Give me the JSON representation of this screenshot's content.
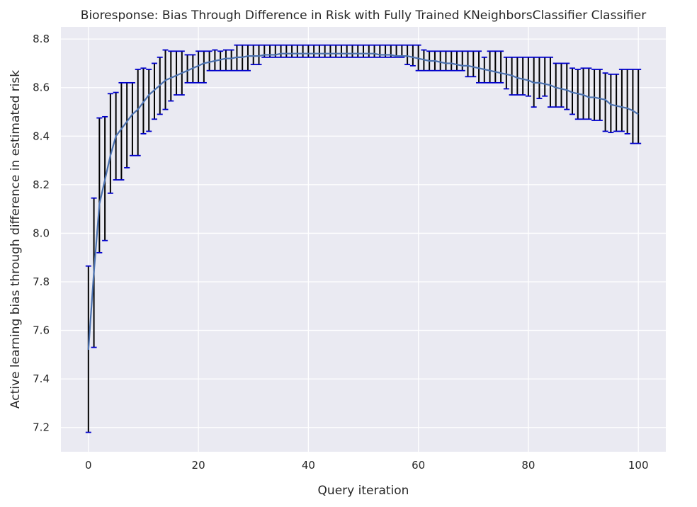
{
  "chart_data": {
    "type": "line",
    "title": "Bioresponse: Bias Through Difference in Risk with Fully Trained KNeighborsClassifier Classifier",
    "xlabel": "Query iteration",
    "ylabel": "Active learning bias through difference in estimated risk",
    "xlim": [
      -5,
      105
    ],
    "ylim": [
      7.1,
      8.85
    ],
    "grid": true,
    "x_ticks": [
      0,
      20,
      40,
      60,
      80,
      100
    ],
    "x_tick_labels": [
      "0",
      "20",
      "40",
      "60",
      "80",
      "100"
    ],
    "y_ticks": [
      7.2,
      7.4,
      7.6,
      7.8,
      8.0,
      8.2,
      8.4,
      8.6,
      8.8
    ],
    "y_tick_labels": [
      "7.2",
      "7.4",
      "7.6",
      "7.8",
      "8.0",
      "8.2",
      "8.4",
      "8.6",
      "8.8"
    ],
    "colors": {
      "background": "#eaeaf2",
      "grid": "#ffffff",
      "line": "#4c72b0",
      "errorbar": "#000000",
      "cap": "#0000cc"
    },
    "series": [
      {
        "x": [
          0,
          1,
          2,
          3,
          4,
          5,
          6,
          7,
          8,
          9,
          10,
          11,
          12,
          13,
          14,
          15,
          16,
          17,
          18,
          19,
          20,
          21,
          22,
          23,
          24,
          25,
          26,
          27,
          28,
          29,
          30,
          31,
          32,
          33,
          34,
          35,
          36,
          37,
          38,
          39,
          40,
          41,
          42,
          43,
          44,
          45,
          46,
          47,
          48,
          49,
          50,
          51,
          52,
          53,
          54,
          55,
          56,
          57,
          58,
          59,
          60,
          61,
          62,
          63,
          64,
          65,
          66,
          67,
          68,
          69,
          70,
          71,
          72,
          73,
          74,
          75,
          76,
          77,
          78,
          79,
          80,
          81,
          82,
          83,
          84,
          85,
          86,
          87,
          88,
          89,
          90,
          91,
          92,
          93,
          94,
          95,
          96,
          97,
          98,
          99,
          100
        ],
        "y": [
          7.52,
          7.84,
          8.12,
          8.22,
          8.32,
          8.4,
          8.43,
          8.46,
          8.49,
          8.51,
          8.54,
          8.57,
          8.59,
          8.61,
          8.63,
          8.64,
          8.65,
          8.66,
          8.67,
          8.68,
          8.69,
          8.7,
          8.705,
          8.71,
          8.715,
          8.72,
          8.72,
          8.725,
          8.725,
          8.73,
          8.73,
          8.73,
          8.735,
          8.735,
          8.735,
          8.74,
          8.74,
          8.74,
          8.74,
          8.74,
          8.74,
          8.74,
          8.74,
          8.74,
          8.74,
          8.74,
          8.74,
          8.74,
          8.74,
          8.74,
          8.74,
          8.74,
          8.74,
          8.735,
          8.735,
          8.735,
          8.73,
          8.73,
          8.73,
          8.725,
          8.72,
          8.715,
          8.71,
          8.71,
          8.705,
          8.7,
          8.7,
          8.695,
          8.69,
          8.69,
          8.685,
          8.68,
          8.675,
          8.67,
          8.665,
          8.66,
          8.655,
          8.65,
          8.64,
          8.635,
          8.63,
          8.62,
          8.62,
          8.615,
          8.61,
          8.6,
          8.595,
          8.59,
          8.58,
          8.575,
          8.57,
          8.56,
          8.56,
          8.555,
          8.55,
          8.53,
          8.525,
          8.52,
          8.515,
          8.505,
          8.49
        ],
        "err_low": [
          7.18,
          7.53,
          7.92,
          7.97,
          8.165,
          8.22,
          8.22,
          8.27,
          8.32,
          8.32,
          8.41,
          8.42,
          8.47,
          8.49,
          8.51,
          8.545,
          8.57,
          8.57,
          8.62,
          8.62,
          8.62,
          8.62,
          8.67,
          8.67,
          8.67,
          8.67,
          8.67,
          8.67,
          8.67,
          8.67,
          8.695,
          8.695,
          8.725,
          8.725,
          8.725,
          8.725,
          8.725,
          8.725,
          8.725,
          8.725,
          8.725,
          8.725,
          8.725,
          8.725,
          8.725,
          8.725,
          8.725,
          8.725,
          8.725,
          8.725,
          8.725,
          8.725,
          8.725,
          8.725,
          8.725,
          8.725,
          8.725,
          8.725,
          8.695,
          8.69,
          8.67,
          8.67,
          8.67,
          8.67,
          8.67,
          8.67,
          8.67,
          8.67,
          8.67,
          8.645,
          8.645,
          8.62,
          8.62,
          8.62,
          8.62,
          8.62,
          8.595,
          8.57,
          8.57,
          8.57,
          8.565,
          8.52,
          8.555,
          8.565,
          8.52,
          8.52,
          8.52,
          8.51,
          8.49,
          8.47,
          8.47,
          8.47,
          8.465,
          8.465,
          8.42,
          8.415,
          8.42,
          8.42,
          8.41,
          8.37,
          8.37
        ],
        "err_high": [
          7.865,
          8.145,
          8.475,
          8.48,
          8.575,
          8.58,
          8.62,
          8.62,
          8.62,
          8.675,
          8.68,
          8.675,
          8.7,
          8.725,
          8.755,
          8.75,
          8.75,
          8.75,
          8.735,
          8.735,
          8.75,
          8.75,
          8.75,
          8.755,
          8.75,
          8.755,
          8.755,
          8.775,
          8.775,
          8.775,
          8.775,
          8.775,
          8.775,
          8.775,
          8.775,
          8.775,
          8.775,
          8.775,
          8.775,
          8.775,
          8.775,
          8.775,
          8.775,
          8.775,
          8.775,
          8.775,
          8.775,
          8.775,
          8.775,
          8.775,
          8.775,
          8.775,
          8.775,
          8.775,
          8.775,
          8.775,
          8.775,
          8.775,
          8.775,
          8.775,
          8.775,
          8.755,
          8.75,
          8.75,
          8.75,
          8.75,
          8.75,
          8.75,
          8.75,
          8.75,
          8.75,
          8.75,
          8.725,
          8.75,
          8.75,
          8.75,
          8.725,
          8.725,
          8.725,
          8.725,
          8.725,
          8.725,
          8.725,
          8.725,
          8.725,
          8.7,
          8.7,
          8.7,
          8.68,
          8.675,
          8.68,
          8.68,
          8.675,
          8.675,
          8.66,
          8.655,
          8.655,
          8.675,
          8.675,
          8.675,
          8.675
        ]
      }
    ]
  }
}
